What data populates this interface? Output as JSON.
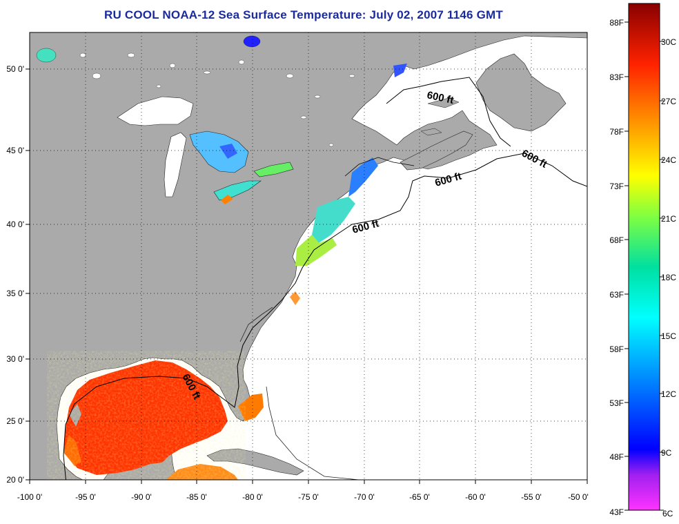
{
  "title": "RU COOL  NOAA-12  Sea Surface Temperature:  July 02, 2007 1146 GMT",
  "map": {
    "lon_ticks": [
      "-100 0'",
      "-95 0'",
      "-90 0'",
      "-85 0'",
      "-80 0'",
      "-75 0'",
      "-70 0'",
      "-65 0'",
      "-60 0'",
      "-55 0'",
      "-50 0'"
    ],
    "lat_ticks": [
      "20 0'",
      "25 0'",
      "30 0'",
      "35 0'",
      "40 0'",
      "45 0'",
      "50 0'"
    ],
    "contour_labels": [
      "600 ft",
      "600 ft",
      "600 ft",
      "600 ft",
      "600 ft"
    ],
    "land_color": "#aaaaaa",
    "water_no_data_color": "#ffffff"
  },
  "colorbar": {
    "fahrenheit_labels": [
      "88F",
      "83F",
      "78F",
      "73F",
      "68F",
      "63F",
      "58F",
      "53F",
      "48F",
      "43F"
    ],
    "celsius_labels": [
      "30C",
      "27C",
      "24C",
      "21C",
      "18C",
      "15C",
      "12C",
      "9C",
      "6C"
    ],
    "scale_colors": [
      "#990000",
      "#ff0000",
      "#ff8000",
      "#ffff00",
      "#80ff00",
      "#00ff80",
      "#00ffff",
      "#0080ff",
      "#0000ff",
      "#8000ff",
      "#ff00ff"
    ]
  }
}
